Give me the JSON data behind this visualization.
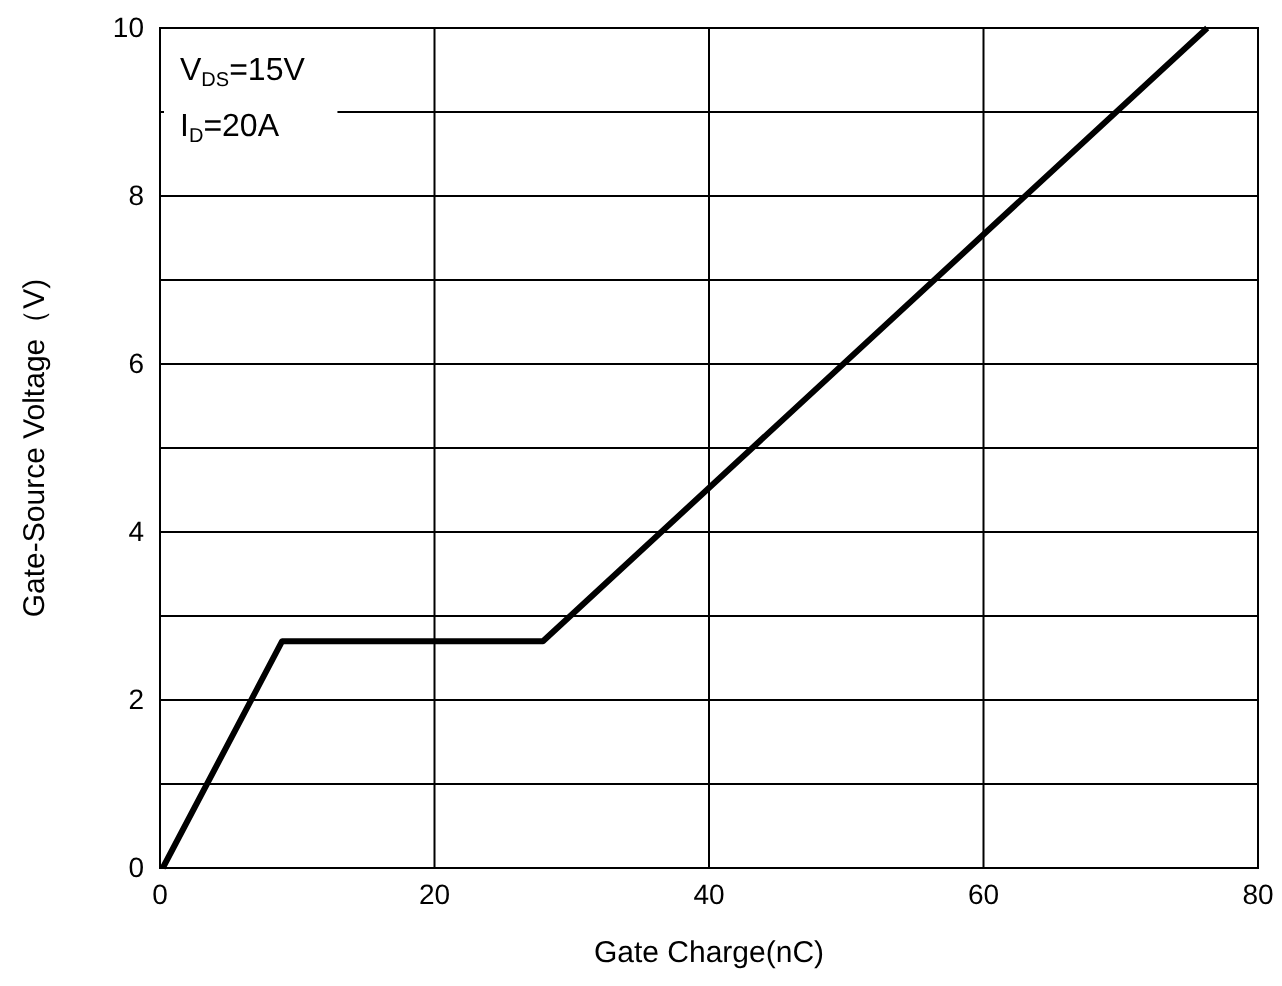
{
  "chart_data": {
    "type": "line",
    "xlabel": "Gate Charge(nC)",
    "ylabel": "Gate-Source Voltage（V)",
    "x": [
      0.2,
      8.9,
      27.9,
      76.3
    ],
    "series": [
      {
        "color": "#000000",
        "values": [
          0,
          2.7,
          2.7,
          10
        ]
      }
    ],
    "xlim": [
      0,
      80
    ],
    "xticks": [
      0,
      20,
      40,
      60,
      80
    ],
    "ylim": [
      0,
      10
    ],
    "yticks": [
      0,
      {
        "value": 1,
        "label": null
      },
      2,
      {
        "value": 3,
        "label": null
      },
      4,
      {
        "value": 5,
        "label": null
      },
      6,
      {
        "value": 7,
        "label": null
      },
      8,
      {
        "value": 9,
        "label": null
      },
      10
    ],
    "grid": true,
    "marker": "none",
    "line_style": "solid",
    "annotations": [
      "V$_{DS}$=15V",
      "I$_{D}$=20A"
    ]
  }
}
